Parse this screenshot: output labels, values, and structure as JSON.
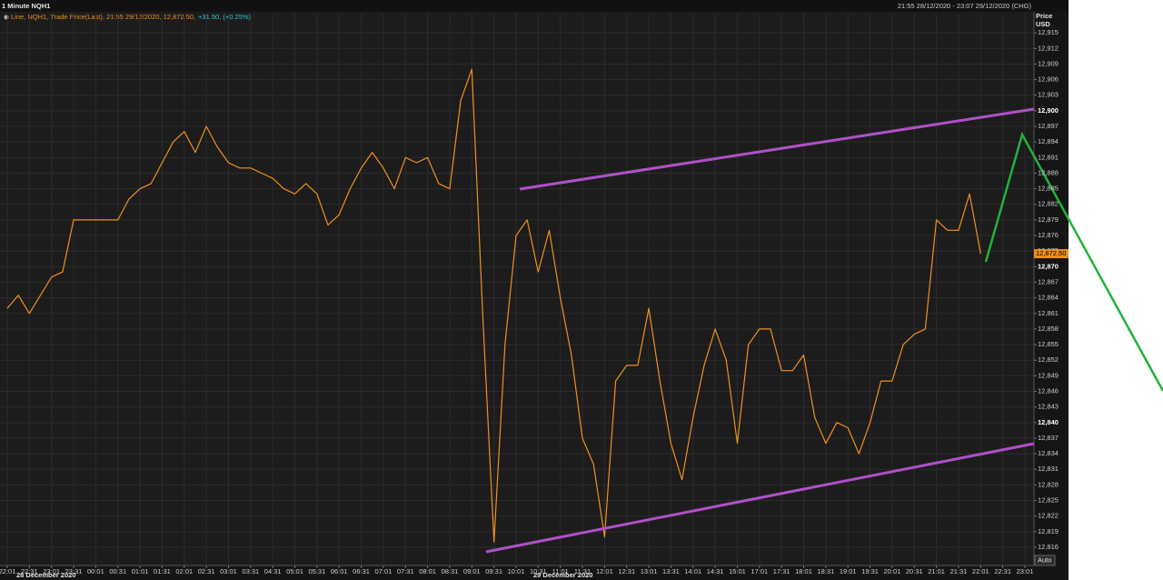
{
  "chart_data": {
    "type": "line",
    "title": "1 Minute NQH1",
    "subtitle": "21:55 28/12/2020 - 23:07 29/12/2020 (CHG)",
    "legend_text": "Line, NQH1, Trade Price(Last), 21:55 29/12/2020, 12,872.50,",
    "legend_change": "+31.50, (+0.25%)",
    "y_axis_label": "Price",
    "y_axis_unit": "USD",
    "auto_label": "Auto",
    "annotations": [
      "28 December 2020",
      "29 December 2020"
    ],
    "last_label": "12,872.50",
    "categories": [
      "22:01",
      null,
      "22:31",
      null,
      "23:01",
      null,
      "23:31",
      null,
      "00:01",
      null,
      "00:31",
      null,
      "01:01",
      null,
      "01:31",
      null,
      "02:01",
      null,
      "02:31",
      null,
      "03:01",
      null,
      "03:31",
      null,
      "04:31",
      null,
      "05:01",
      null,
      "05:31",
      null,
      "06:01",
      null,
      "06:31",
      null,
      "07:01",
      null,
      "07:31",
      null,
      "08:01",
      null,
      "08:31",
      null,
      "09:01",
      null,
      "09:31",
      null,
      "10:01",
      null,
      "10:31",
      null,
      "11:01",
      null,
      "11:31",
      null,
      "12:01",
      null,
      "12:31",
      null,
      "13:01",
      null,
      "13:31",
      null,
      "14:01",
      null,
      "14:31",
      null,
      "15:01",
      null,
      "17:01",
      null,
      "17:31",
      null,
      "18:01",
      null,
      "18:31",
      null,
      "19:01",
      null,
      "19:31",
      null,
      "20:01",
      null,
      "20:31",
      null,
      "21:01",
      null,
      "21:31",
      null,
      "22:01",
      null,
      "22:31",
      null,
      "23:01"
    ],
    "series": [
      {
        "name": "NQH1",
        "color": "#f0901e",
        "values": [
          12862,
          12864.5,
          12861,
          12864.5,
          12868,
          12869,
          12879,
          12879,
          12879,
          12879,
          12879,
          12883,
          12885,
          12886,
          12890,
          12894,
          12896,
          12892,
          12897,
          12893,
          12890,
          12889,
          12889,
          12888,
          12887,
          12885,
          12884,
          12886,
          12884,
          12878,
          12880,
          12885,
          12889,
          12892,
          12889,
          12885,
          12891,
          12890,
          12891,
          12886,
          12885,
          12902,
          12908,
          12860,
          12817,
          12855,
          12876,
          12879,
          12869,
          12877,
          12864,
          12853,
          12837,
          12832,
          12818,
          12848,
          12851,
          12851,
          12862,
          12848,
          12836,
          12829,
          12841,
          12851,
          12858,
          12852,
          12836,
          12855,
          12858,
          12858,
          12850,
          12850,
          12853,
          12841,
          12836,
          12840,
          12839,
          12834,
          12840,
          12848,
          12848,
          12855,
          12857,
          12858,
          12879,
          12877,
          12877,
          12884,
          12872.5,
          null,
          null,
          null,
          null
        ]
      }
    ],
    "ylim": [
      12812.5,
      12918.7
    ],
    "yticks": [
      {
        "value": 12816,
        "label": "12,816"
      },
      {
        "value": 12819,
        "label": "12,819"
      },
      {
        "value": 12822,
        "label": "12,822"
      },
      {
        "value": 12825,
        "label": "12,825"
      },
      {
        "value": 12828,
        "label": "12,828"
      },
      {
        "value": 12831,
        "label": "12,831"
      },
      {
        "value": 12834,
        "label": "12,834"
      },
      {
        "value": 12837,
        "label": "12,837"
      },
      {
        "value": 12840,
        "label": "12,840",
        "bold": true
      },
      {
        "value": 12843,
        "label": "12,843"
      },
      {
        "value": 12846,
        "label": "12,846"
      },
      {
        "value": 12849,
        "label": "12,849"
      },
      {
        "value": 12852,
        "label": "12,852"
      },
      {
        "value": 12855,
        "label": "12,855"
      },
      {
        "value": 12858,
        "label": "12,858"
      },
      {
        "value": 12861,
        "label": "12,861"
      },
      {
        "value": 12864,
        "label": "12,864"
      },
      {
        "value": 12867,
        "label": "12,867"
      },
      {
        "value": 12870,
        "label": "12,870",
        "bold": true
      },
      {
        "value": 12873,
        "label": "12,873"
      },
      {
        "value": 12876,
        "label": "12,876"
      },
      {
        "value": 12879,
        "label": "12,879"
      },
      {
        "value": 12882,
        "label": "12,882"
      },
      {
        "value": 12885,
        "label": "12,885"
      },
      {
        "value": 12888,
        "label": "12,888"
      },
      {
        "value": 12891,
        "label": "12,891"
      },
      {
        "value": 12894,
        "label": "12,894"
      },
      {
        "value": 12897,
        "label": "12,897"
      },
      {
        "value": 12900,
        "label": "12,900",
        "bold": true
      },
      {
        "value": 12903,
        "label": "12,903"
      },
      {
        "value": 12906,
        "label": "12,906"
      },
      {
        "value": 12909,
        "label": "12,909"
      },
      {
        "value": 12912,
        "label": "12,912"
      },
      {
        "value": 12915,
        "label": "12,915"
      }
    ],
    "grid": true
  }
}
